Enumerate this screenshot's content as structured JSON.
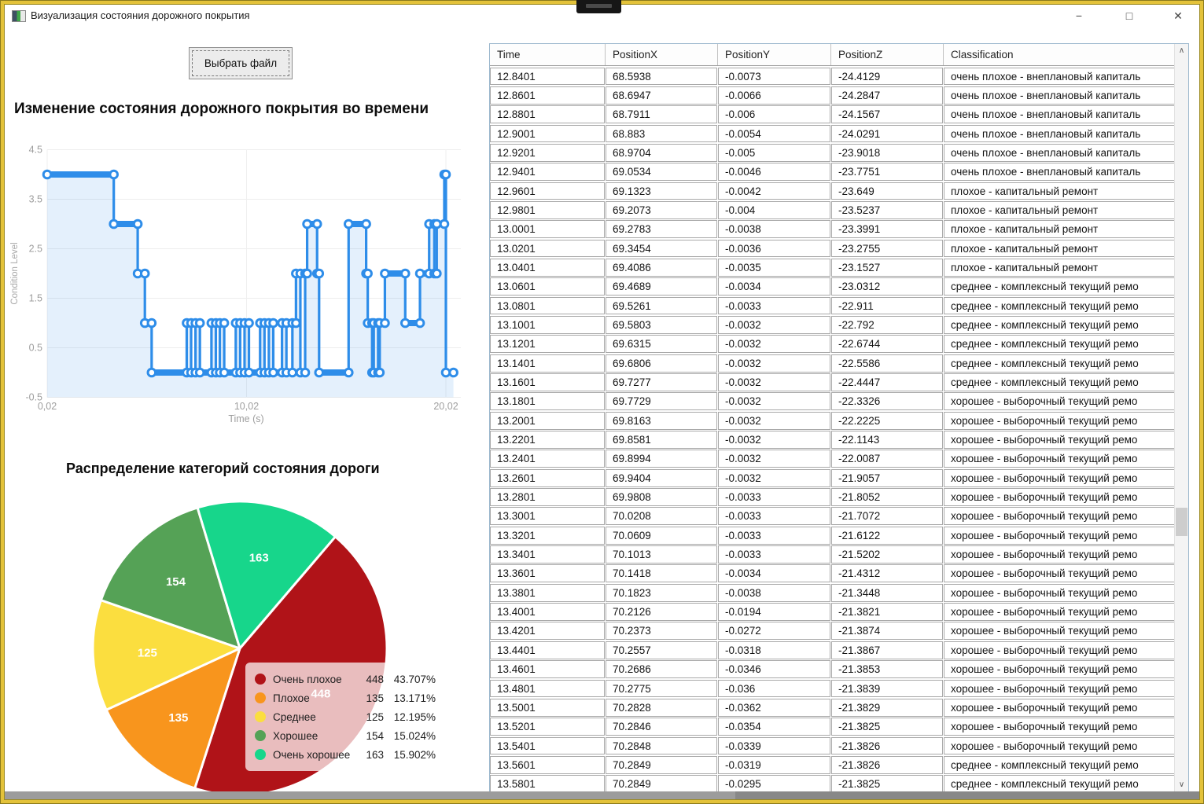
{
  "window": {
    "title": "Визуализация состояния дорожного покрытия",
    "controls": {
      "minimize": "−",
      "maximize": "□",
      "close": "✕"
    }
  },
  "file_button_label": "Выбрать файл",
  "line_chart": {
    "type": "line",
    "title": "Изменение состояния дорожного покрытия во времени",
    "xlabel": "Time (s)",
    "ylabel": "Condition Level",
    "yticks": [
      4.5,
      3.5,
      2.5,
      1.5,
      0.5,
      -0.5
    ],
    "xticks": [
      {
        "label": "0,02",
        "value": 0.02
      },
      {
        "label": "10,02",
        "value": 10.02
      },
      {
        "label": "20,02",
        "value": 20.02
      }
    ],
    "xlim": [
      0.02,
      20.02
    ],
    "ylim": [
      -0.5,
      4.5
    ],
    "line_color": "#2E8DE9",
    "fill_color": "#2E8DE9",
    "points": [
      [
        0.02,
        4
      ],
      [
        3.36,
        4
      ],
      [
        3.36,
        3
      ],
      [
        4.56,
        3
      ],
      [
        4.56,
        2
      ],
      [
        4.92,
        2
      ],
      [
        4.92,
        1
      ],
      [
        5.26,
        1
      ],
      [
        5.26,
        0
      ],
      [
        7.02,
        0
      ],
      [
        7.02,
        1
      ],
      [
        7.24,
        1
      ],
      [
        7.24,
        0
      ],
      [
        7.46,
        0
      ],
      [
        7.46,
        1
      ],
      [
        7.68,
        1
      ],
      [
        7.68,
        0
      ],
      [
        8.26,
        0
      ],
      [
        8.26,
        1
      ],
      [
        8.48,
        1
      ],
      [
        8.48,
        0
      ],
      [
        8.68,
        0
      ],
      [
        8.68,
        1
      ],
      [
        8.9,
        1
      ],
      [
        8.9,
        0
      ],
      [
        9.48,
        0
      ],
      [
        9.48,
        1
      ],
      [
        9.7,
        1
      ],
      [
        9.7,
        0
      ],
      [
        9.92,
        0
      ],
      [
        9.92,
        1
      ],
      [
        10.14,
        1
      ],
      [
        10.14,
        0
      ],
      [
        10.7,
        0
      ],
      [
        10.7,
        1
      ],
      [
        10.92,
        1
      ],
      [
        10.92,
        0
      ],
      [
        11.14,
        0
      ],
      [
        11.14,
        1
      ],
      [
        11.36,
        1
      ],
      [
        11.36,
        0
      ],
      [
        11.8,
        0
      ],
      [
        11.8,
        1
      ],
      [
        12.02,
        1
      ],
      [
        12.02,
        0
      ],
      [
        12.32,
        0
      ],
      [
        12.32,
        1
      ],
      [
        12.5,
        1
      ],
      [
        12.5,
        2
      ],
      [
        12.72,
        2
      ],
      [
        12.72,
        0
      ],
      [
        12.96,
        0
      ],
      [
        12.96,
        2
      ],
      [
        13.06,
        2
      ],
      [
        13.06,
        3
      ],
      [
        13.56,
        3
      ],
      [
        13.56,
        2
      ],
      [
        13.66,
        2
      ],
      [
        13.66,
        0
      ],
      [
        15.14,
        0
      ],
      [
        15.14,
        3
      ],
      [
        16.02,
        3
      ],
      [
        16.02,
        2
      ],
      [
        16.1,
        2
      ],
      [
        16.1,
        1
      ],
      [
        16.32,
        1
      ],
      [
        16.32,
        0
      ],
      [
        16.4,
        0
      ],
      [
        16.4,
        1
      ],
      [
        16.62,
        1
      ],
      [
        16.62,
        0
      ],
      [
        16.7,
        0
      ],
      [
        16.7,
        1
      ],
      [
        16.96,
        1
      ],
      [
        16.96,
        2
      ],
      [
        17.98,
        2
      ],
      [
        17.98,
        1
      ],
      [
        18.72,
        1
      ],
      [
        18.72,
        2
      ],
      [
        19.18,
        2
      ],
      [
        19.18,
        3
      ],
      [
        19.44,
        3
      ],
      [
        19.44,
        2
      ],
      [
        19.56,
        2
      ],
      [
        19.56,
        3
      ],
      [
        19.94,
        3
      ],
      [
        19.94,
        4
      ],
      [
        20.02,
        4
      ],
      [
        20.02,
        0
      ],
      [
        20.4,
        0
      ]
    ]
  },
  "pie_chart": {
    "type": "pie",
    "title": "Распределение категорий состояния дороги",
    "start_angle_deg": 40.5,
    "slices": [
      {
        "label": "Очень плохое",
        "value": 448,
        "pct": "43.707%",
        "color": "#B01318"
      },
      {
        "label": "Плохое",
        "value": 135,
        "pct": "13.171%",
        "color": "#F8951D"
      },
      {
        "label": "Среднее",
        "value": 125,
        "pct": "12.195%",
        "color": "#FBDE3F"
      },
      {
        "label": "Хорошее",
        "value": 154,
        "pct": "15.024%",
        "color": "#55A256"
      },
      {
        "label": "Очень хорошее",
        "value": 163,
        "pct": "15.902%",
        "color": "#17D68B"
      }
    ]
  },
  "table": {
    "columns": [
      "Time",
      "PositionX",
      "PositionY",
      "PositionZ",
      "Classification"
    ],
    "rows": [
      [
        "12.8401",
        "68.5938",
        "-0.0073",
        "-24.4129",
        "очень плохое - внеплановый капиталь"
      ],
      [
        "12.8601",
        "68.6947",
        "-0.0066",
        "-24.2847",
        "очень плохое - внеплановый капиталь"
      ],
      [
        "12.8801",
        "68.7911",
        "-0.006",
        "-24.1567",
        "очень плохое - внеплановый капиталь"
      ],
      [
        "12.9001",
        "68.883",
        "-0.0054",
        "-24.0291",
        "очень плохое - внеплановый капиталь"
      ],
      [
        "12.9201",
        "68.9704",
        "-0.005",
        "-23.9018",
        "очень плохое - внеплановый капиталь"
      ],
      [
        "12.9401",
        "69.0534",
        "-0.0046",
        "-23.7751",
        "очень плохое - внеплановый капиталь"
      ],
      [
        "12.9601",
        "69.1323",
        "-0.0042",
        "-23.649",
        "плохое - капитальный ремонт"
      ],
      [
        "12.9801",
        "69.2073",
        "-0.004",
        "-23.5237",
        "плохое - капитальный ремонт"
      ],
      [
        "13.0001",
        "69.2783",
        "-0.0038",
        "-23.3991",
        "плохое - капитальный ремонт"
      ],
      [
        "13.0201",
        "69.3454",
        "-0.0036",
        "-23.2755",
        "плохое - капитальный ремонт"
      ],
      [
        "13.0401",
        "69.4086",
        "-0.0035",
        "-23.1527",
        "плохое - капитальный ремонт"
      ],
      [
        "13.0601",
        "69.4689",
        "-0.0034",
        "-23.0312",
        "среднее - комплексный текущий ремо"
      ],
      [
        "13.0801",
        "69.5261",
        "-0.0033",
        "-22.911",
        "среднее - комплексный текущий ремо"
      ],
      [
        "13.1001",
        "69.5803",
        "-0.0032",
        "-22.792",
        "среднее - комплексный текущий ремо"
      ],
      [
        "13.1201",
        "69.6315",
        "-0.0032",
        "-22.6744",
        "среднее - комплексный текущий ремо"
      ],
      [
        "13.1401",
        "69.6806",
        "-0.0032",
        "-22.5586",
        "среднее - комплексный текущий ремо"
      ],
      [
        "13.1601",
        "69.7277",
        "-0.0032",
        "-22.4447",
        "среднее - комплексный текущий ремо"
      ],
      [
        "13.1801",
        "69.7729",
        "-0.0032",
        "-22.3326",
        "хорошее - выборочный текущий ремо"
      ],
      [
        "13.2001",
        "69.8163",
        "-0.0032",
        "-22.2225",
        "хорошее - выборочный текущий ремо"
      ],
      [
        "13.2201",
        "69.8581",
        "-0.0032",
        "-22.1143",
        "хорошее - выборочный текущий ремо"
      ],
      [
        "13.2401",
        "69.8994",
        "-0.0032",
        "-22.0087",
        "хорошее - выборочный текущий ремо"
      ],
      [
        "13.2601",
        "69.9404",
        "-0.0032",
        "-21.9057",
        "хорошее - выборочный текущий ремо"
      ],
      [
        "13.2801",
        "69.9808",
        "-0.0033",
        "-21.8052",
        "хорошее - выборочный текущий ремо"
      ],
      [
        "13.3001",
        "70.0208",
        "-0.0033",
        "-21.7072",
        "хорошее - выборочный текущий ремо"
      ],
      [
        "13.3201",
        "70.0609",
        "-0.0033",
        "-21.6122",
        "хорошее - выборочный текущий ремо"
      ],
      [
        "13.3401",
        "70.1013",
        "-0.0033",
        "-21.5202",
        "хорошее - выборочный текущий ремо"
      ],
      [
        "13.3601",
        "70.1418",
        "-0.0034",
        "-21.4312",
        "хорошее - выборочный текущий ремо"
      ],
      [
        "13.3801",
        "70.1823",
        "-0.0038",
        "-21.3448",
        "хорошее - выборочный текущий ремо"
      ],
      [
        "13.4001",
        "70.2126",
        "-0.0194",
        "-21.3821",
        "хорошее - выборочный текущий ремо"
      ],
      [
        "13.4201",
        "70.2373",
        "-0.0272",
        "-21.3874",
        "хорошее - выборочный текущий ремо"
      ],
      [
        "13.4401",
        "70.2557",
        "-0.0318",
        "-21.3867",
        "хорошее - выборочный текущий ремо"
      ],
      [
        "13.4601",
        "70.2686",
        "-0.0346",
        "-21.3853",
        "хорошее - выборочный текущий ремо"
      ],
      [
        "13.4801",
        "70.2775",
        "-0.036",
        "-21.3839",
        "хорошее - выборочный текущий ремо"
      ],
      [
        "13.5001",
        "70.2828",
        "-0.0362",
        "-21.3829",
        "хорошее - выборочный текущий ремо"
      ],
      [
        "13.5201",
        "70.2846",
        "-0.0354",
        "-21.3825",
        "хорошее - выборочный текущий ремо"
      ],
      [
        "13.5401",
        "70.2848",
        "-0.0339",
        "-21.3826",
        "хорошее - выборочный текущий ремо"
      ],
      [
        "13.5601",
        "70.2849",
        "-0.0319",
        "-21.3826",
        "среднее - комплексный текущий ремо"
      ],
      [
        "13.5801",
        "70.2849",
        "-0.0295",
        "-21.3825",
        "среднее - комплексный текущий ремо"
      ]
    ]
  },
  "scrollbar": {
    "up": "∧",
    "down": "∨"
  }
}
